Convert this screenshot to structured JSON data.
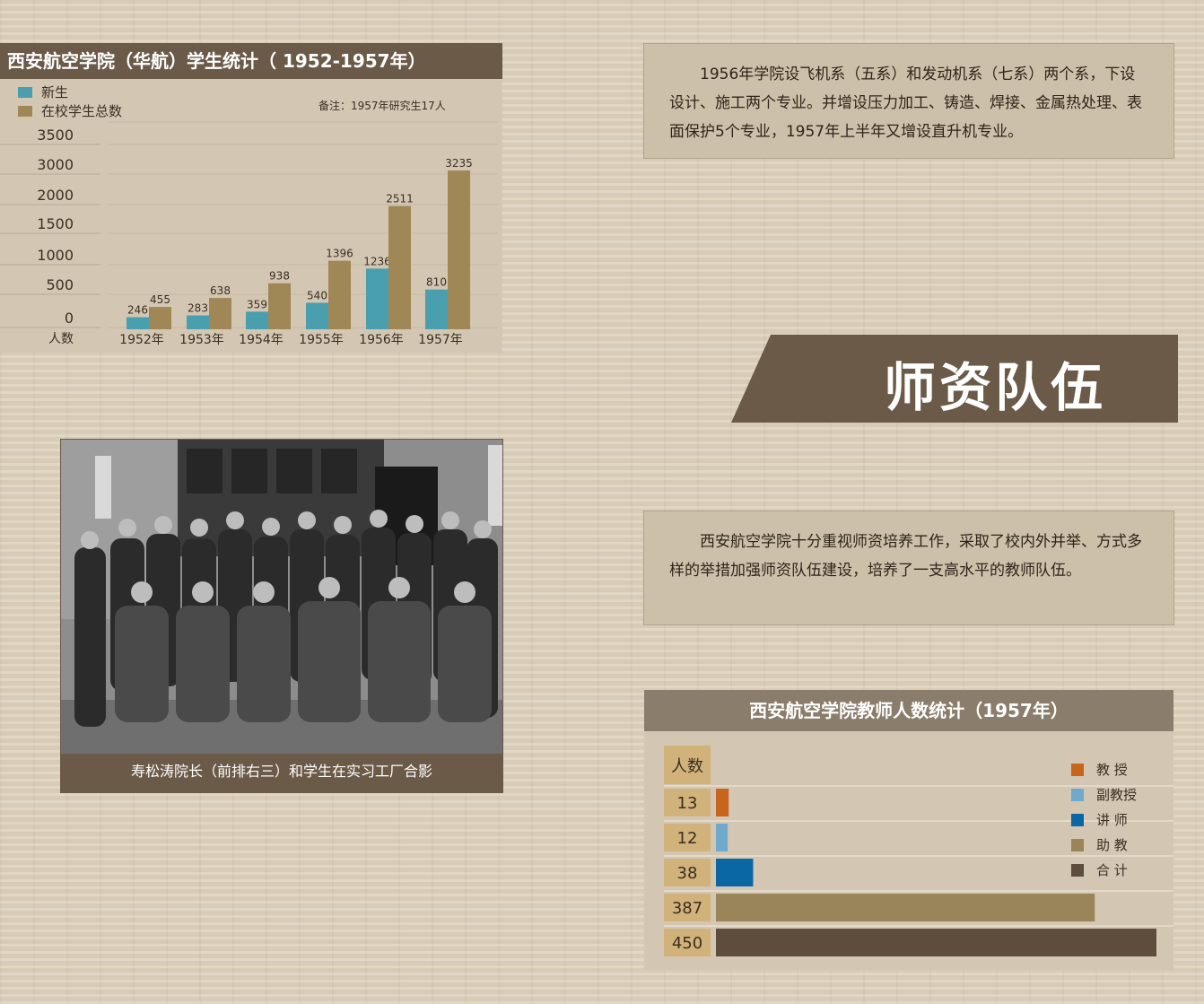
{
  "chart_data": [
    {
      "type": "bar",
      "title": "西安航空学院（华航）学生统计（ 1952-1957年）",
      "ylabel": "人数",
      "note": "备注：1957年研究生17人",
      "categories": [
        "1952年",
        "1953年",
        "1954年",
        "1955年",
        "1956年",
        "1957年"
      ],
      "series": [
        {
          "name": "新生",
          "values": [
            246,
            283,
            359,
            540,
            1236,
            810
          ],
          "color": "#4a9fae"
        },
        {
          "name": "在校学生总数",
          "values": [
            455,
            638,
            938,
            1396,
            2511,
            3235
          ],
          "color": "#a08756"
        }
      ],
      "yticks": [
        "3500",
        "3000",
        "2000",
        "1500",
        "1000",
        "500",
        "0"
      ],
      "ylim": [
        0,
        3500
      ],
      "legend": "top-left",
      "grid": true
    },
    {
      "type": "bar",
      "orientation": "horizontal",
      "title": "西安航空学院教师人数统计（1957年）",
      "ylabel": "人数",
      "categories": [
        "教 授",
        "副教授",
        "讲 师",
        "助 教",
        "合 计"
      ],
      "values": [
        13,
        12,
        38,
        387,
        450
      ],
      "value_labels": [
        "13",
        "12",
        "38",
        "387",
        "450"
      ],
      "colors": [
        "#c8651c",
        "#6fa9cb",
        "#0b67a3",
        "#9a845a",
        "#5e4c3d"
      ],
      "legend": "right",
      "grid": true
    }
  ],
  "text_blocks": {
    "intro": "1956年学院设飞机系（五系）和发动机系（七系）两个系，下设设计、施工两个专业。并增设压力加工、铸造、焊接、金属热处理、表面保护5个专业，1957年上半年又增设直升机专业。",
    "faculty": "西安航空学院十分重视师资培养工作，采取了校内外并举、方式多样的举措加强师资队伍建设，培养了一支高水平的教师队伍。"
  },
  "banner": {
    "label": "师资队伍"
  },
  "photo": {
    "caption": "寿松涛院长（前排右三）和学生在实习工厂合影"
  },
  "colors": {
    "brown_dark": "#6b5a48",
    "panel": "#d3c7b4",
    "page": "#d9ccb6"
  }
}
